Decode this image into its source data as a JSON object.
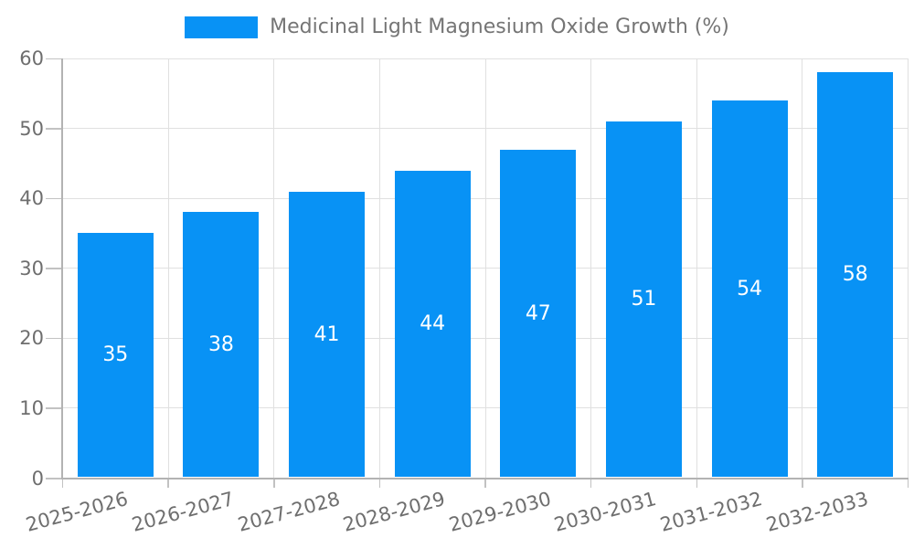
{
  "legend": {
    "label": "Medicinal Light Magnesium Oxide Growth (%)"
  },
  "chart_data": {
    "type": "bar",
    "title": "Medicinal Light Magnesium Oxide Growth (%)",
    "categories": [
      "2025-2026",
      "2026-2027",
      "2027-2028",
      "2028-2029",
      "2029-2030",
      "2030-2031",
      "2031-2032",
      "2032-2033"
    ],
    "values": [
      35,
      38,
      41,
      44,
      47,
      51,
      54,
      58
    ],
    "value_labels": [
      "35",
      "38",
      "41",
      "44",
      "47",
      "51",
      "54",
      "58"
    ],
    "xlabel": "",
    "ylabel": "",
    "ylim": [
      0,
      60
    ],
    "y_ticks": [
      0,
      10,
      20,
      30,
      40,
      50,
      60
    ],
    "y_tick_labels": [
      "0",
      "10",
      "20",
      "30",
      "40",
      "50",
      "60"
    ],
    "grid": true,
    "legend_position": "top-center",
    "x_label_rotation_deg": -15,
    "colors": {
      "bar": "#0892f5",
      "value_label": "#ffffff",
      "axis_label": "#6e6e6e",
      "legend_text": "#757575",
      "grid_line": "#e0e0e0",
      "axis_line": "#b3b3b3",
      "tick_line": "#c2c2c2",
      "background": "#ffffff"
    }
  }
}
